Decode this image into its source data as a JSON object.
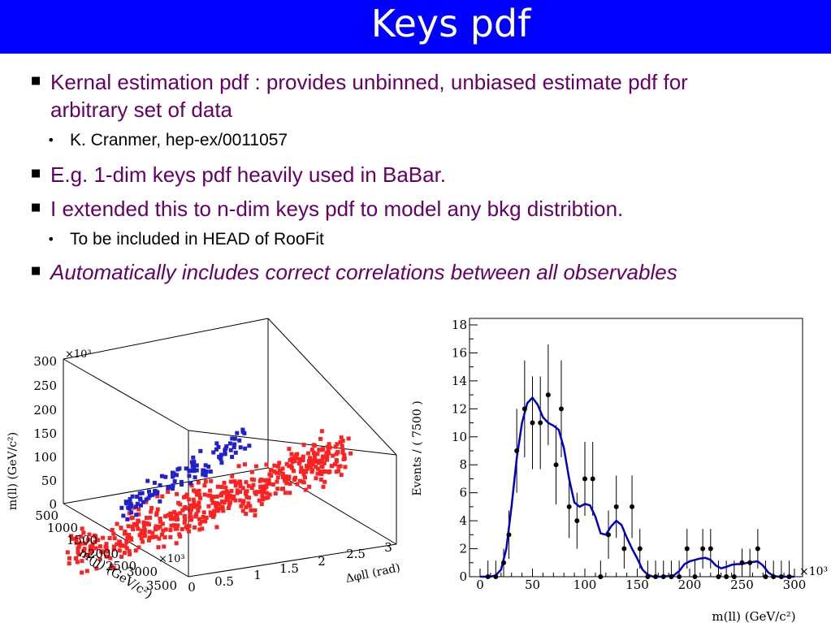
{
  "title": "Keys pdf",
  "bullets": {
    "b1_line1": "Kernal estimation pdf : provides unbinned, unbiased estimate pdf for",
    "b1_line2": "arbitrary set of data",
    "b1_sub": "K. Cranmer, hep-ex/0011057",
    "b2": "E.g. 1-dim keys pdf heavily used in BaBar.",
    "b3": "I extended this to n-dim keys pdf to model any bkg distribtion.",
    "b3_sub": "To be included in HEAD of RooFit",
    "b4": "Automatically includes correct correlations between all observables"
  },
  "colors": {
    "title_bg": "#0000ff",
    "bullet_text": "#660066",
    "signal": "#0000cc",
    "background": "#ff0000",
    "curve": "#0000cc"
  },
  "chart_data": [
    {
      "type": "scatter",
      "subtype": "3d-scatter",
      "axes": {
        "z_label": "m(ll) (GeV/c²)",
        "z_multiplier": "×10³",
        "z_ticks": [
          "0",
          "50",
          "100",
          "150",
          "200",
          "250",
          "300"
        ],
        "y_label": "m(jj) (GeV/c²)",
        "y_multiplier": "×10³",
        "y_ticks": [
          "500",
          "1000",
          "1500",
          "2000",
          "2500",
          "3000",
          "3500"
        ],
        "x_label": "Δφll (rad)",
        "x_ticks": [
          "0",
          "0.5",
          "1",
          "1.5",
          "2",
          "2.5",
          "3"
        ]
      },
      "series": [
        {
          "color": "#ff0000"
        },
        {
          "color": "#0000cc"
        }
      ]
    },
    {
      "type": "line",
      "xlabel": "m(ll) (GeV/c²)",
      "ylabel": "Events / ( 7500 )",
      "x_multiplier": "×10³",
      "xlim": [
        0,
        300
      ],
      "ylim": [
        0,
        18
      ],
      "x_ticks": [
        "0",
        "50",
        "100",
        "150",
        "200",
        "250",
        "300"
      ],
      "y_ticks": [
        "0",
        "2",
        "4",
        "6",
        "8",
        "10",
        "12",
        "14",
        "16",
        "18"
      ],
      "points": [
        {
          "x": 7.5,
          "y": 0
        },
        {
          "x": 15,
          "y": 0
        },
        {
          "x": 22.5,
          "y": 1
        },
        {
          "x": 27.5,
          "y": 3
        },
        {
          "x": 35,
          "y": 9
        },
        {
          "x": 42.5,
          "y": 12
        },
        {
          "x": 50,
          "y": 11
        },
        {
          "x": 57.5,
          "y": 11
        },
        {
          "x": 65,
          "y": 13
        },
        {
          "x": 72.5,
          "y": 8
        },
        {
          "x": 77.5,
          "y": 12
        },
        {
          "x": 85,
          "y": 5
        },
        {
          "x": 92.5,
          "y": 4
        },
        {
          "x": 100,
          "y": 7
        },
        {
          "x": 107.5,
          "y": 7
        },
        {
          "x": 115,
          "y": 0
        },
        {
          "x": 122.5,
          "y": 3
        },
        {
          "x": 130,
          "y": 5
        },
        {
          "x": 137.5,
          "y": 2
        },
        {
          "x": 145,
          "y": 5
        },
        {
          "x": 152.5,
          "y": 2
        },
        {
          "x": 160,
          "y": 0
        },
        {
          "x": 167.5,
          "y": 0
        },
        {
          "x": 175,
          "y": 0
        },
        {
          "x": 182.5,
          "y": 0
        },
        {
          "x": 190,
          "y": 0
        },
        {
          "x": 197.5,
          "y": 2
        },
        {
          "x": 205,
          "y": 0
        },
        {
          "x": 212.5,
          "y": 2
        },
        {
          "x": 220,
          "y": 2
        },
        {
          "x": 227.5,
          "y": 0
        },
        {
          "x": 235,
          "y": 0
        },
        {
          "x": 242.5,
          "y": 0
        },
        {
          "x": 250,
          "y": 1
        },
        {
          "x": 257.5,
          "y": 1
        },
        {
          "x": 265,
          "y": 2
        },
        {
          "x": 272.5,
          "y": 0
        },
        {
          "x": 280,
          "y": 0
        },
        {
          "x": 287.5,
          "y": 0
        },
        {
          "x": 295,
          "y": 0
        }
      ],
      "curve": [
        [
          0,
          0
        ],
        [
          10,
          0
        ],
        [
          15,
          0.1
        ],
        [
          20,
          0.5
        ],
        [
          25,
          2
        ],
        [
          30,
          5
        ],
        [
          35,
          8.5
        ],
        [
          40,
          11
        ],
        [
          45,
          12.4
        ],
        [
          50,
          12.8
        ],
        [
          55,
          12.3
        ],
        [
          60,
          11.4
        ],
        [
          65,
          11
        ],
        [
          70,
          10.8
        ],
        [
          75,
          10.5
        ],
        [
          80,
          9.2
        ],
        [
          85,
          7
        ],
        [
          90,
          5.3
        ],
        [
          95,
          5
        ],
        [
          100,
          5.2
        ],
        [
          105,
          5.1
        ],
        [
          110,
          4.3
        ],
        [
          115,
          3.1
        ],
        [
          120,
          3
        ],
        [
          125,
          3.6
        ],
        [
          130,
          4
        ],
        [
          135,
          3.7
        ],
        [
          140,
          2.8
        ],
        [
          145,
          2
        ],
        [
          150,
          1.3
        ],
        [
          155,
          0.5
        ],
        [
          160,
          0.15
        ],
        [
          165,
          0
        ],
        [
          175,
          0
        ],
        [
          185,
          0.1
        ],
        [
          190,
          0.4
        ],
        [
          195,
          0.9
        ],
        [
          200,
          1.1
        ],
        [
          205,
          1.2
        ],
        [
          210,
          1.3
        ],
        [
          215,
          1.35
        ],
        [
          220,
          1.2
        ],
        [
          225,
          0.8
        ],
        [
          230,
          0.6
        ],
        [
          235,
          0.7
        ],
        [
          240,
          0.85
        ],
        [
          245,
          0.9
        ],
        [
          250,
          0.9
        ],
        [
          255,
          1
        ],
        [
          260,
          1.05
        ],
        [
          265,
          1.1
        ],
        [
          270,
          0.8
        ],
        [
          275,
          0.3
        ],
        [
          280,
          0.05
        ],
        [
          285,
          0
        ],
        [
          300,
          0
        ]
      ]
    }
  ]
}
